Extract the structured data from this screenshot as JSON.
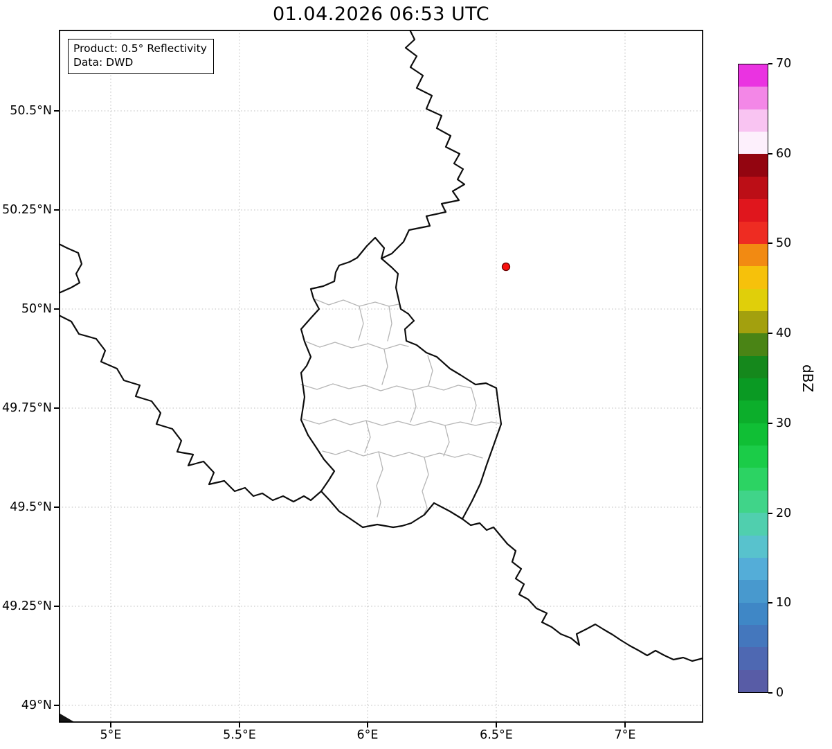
{
  "title": "01.04.2026 06:53 UTC",
  "info_box": {
    "product": "Product: 0.5° Reflectivity",
    "source": "Data: DWD"
  },
  "map": {
    "x_tick_labels": [
      "5°E",
      "5.5°E",
      "6°E",
      "6.5°E",
      "7°E"
    ],
    "y_tick_labels": [
      "50.5°N",
      "50.25°N",
      "50°N",
      "49.75°N",
      "49.5°N",
      "49.25°N",
      "49°N"
    ],
    "regions": {
      "country_border_color": "#0d0d0d",
      "district_border_color": "#b5b5b5"
    },
    "radar_marker": {
      "approx_position": "6.54°E, 50.11°N",
      "fill_color": "#f8110e",
      "edge_color": "#650000"
    }
  },
  "colorbar": {
    "label": "dBZ",
    "tick_labels": [
      "0",
      "10",
      "20",
      "30",
      "40",
      "50",
      "60",
      "70"
    ],
    "min_dbz": 0,
    "max_dbz": 70,
    "colors_bottom_to_top": [
      "#585ca6",
      "#4e68b2",
      "#4477bd",
      "#3f87c6",
      "#4899ce",
      "#54add8",
      "#58c2cd",
      "#50cfae",
      "#40d489",
      "#2cd363",
      "#1bcc48",
      "#10bf35",
      "#0cae2b",
      "#0a9a23",
      "#15881c",
      "#4a8415",
      "#a3a00e",
      "#e0cf0a",
      "#f6c10b",
      "#f28a12",
      "#ee2c22",
      "#e0161d",
      "#bc0e16",
      "#930510",
      "#fdf0fc",
      "#f9c4f2",
      "#f387e7",
      "#ea33e1"
    ]
  }
}
